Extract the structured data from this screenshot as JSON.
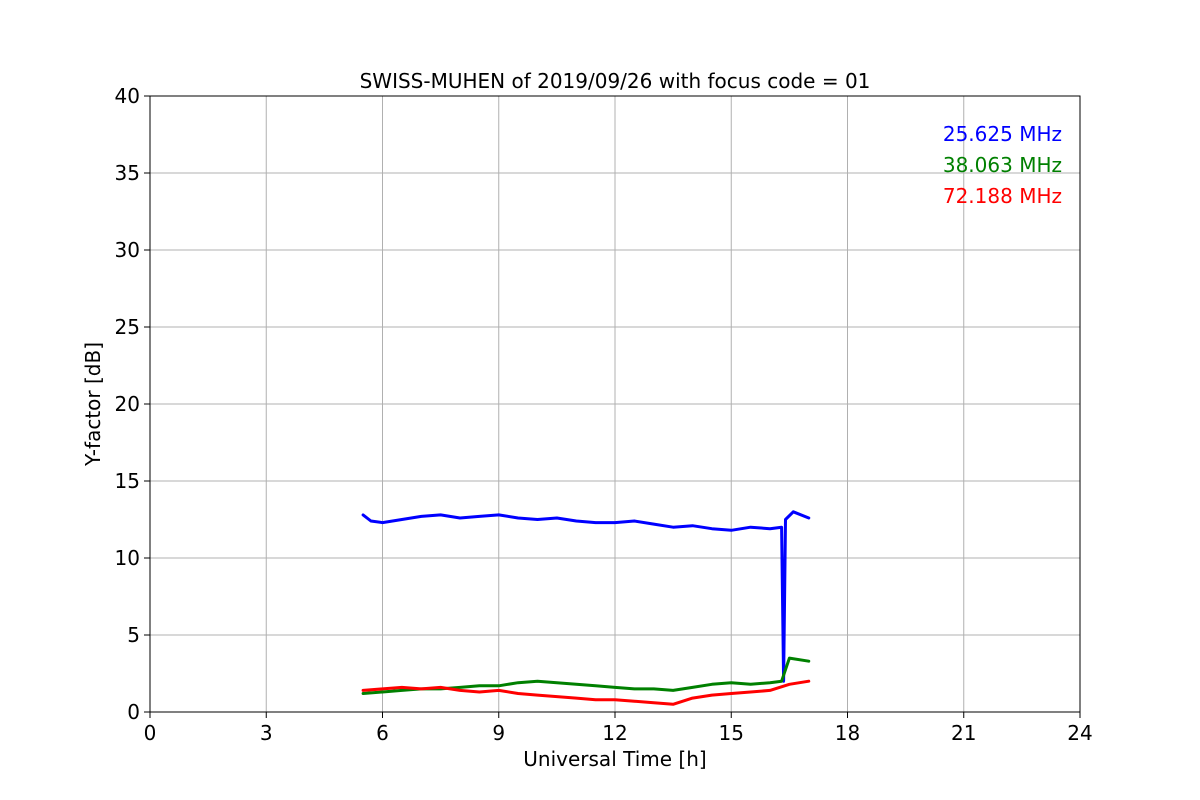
{
  "chart_data": {
    "type": "line",
    "title": "SWISS-MUHEN of 2019/09/26 with focus code = 01",
    "xlabel": "Universal Time [h]",
    "ylabel": "Y-factor [dB]",
    "xlim": [
      0,
      24
    ],
    "ylim": [
      0,
      40
    ],
    "xticks": [
      0,
      3,
      6,
      9,
      12,
      15,
      18,
      21,
      24
    ],
    "yticks": [
      0,
      5,
      10,
      15,
      20,
      25,
      30,
      35,
      40
    ],
    "grid": true,
    "legend_position": "top-right",
    "series": [
      {
        "name": "25.625 MHz",
        "color": "#0000ff",
        "x": [
          5.5,
          5.7,
          6.0,
          6.5,
          7.0,
          7.5,
          8.0,
          8.5,
          9.0,
          9.5,
          10.0,
          10.5,
          11.0,
          11.5,
          12.0,
          12.5,
          13.0,
          13.5,
          14.0,
          14.5,
          15.0,
          15.5,
          16.0,
          16.3,
          16.35,
          16.4,
          16.6,
          17.0
        ],
        "y": [
          12.8,
          12.4,
          12.3,
          12.5,
          12.7,
          12.8,
          12.6,
          12.7,
          12.8,
          12.6,
          12.5,
          12.6,
          12.4,
          12.3,
          12.3,
          12.4,
          12.2,
          12.0,
          12.1,
          11.9,
          11.8,
          12.0,
          11.9,
          12.0,
          2.0,
          12.5,
          13.0,
          12.6
        ]
      },
      {
        "name": "38.063 MHz",
        "color": "#008000",
        "x": [
          5.5,
          6.0,
          6.5,
          7.0,
          7.5,
          8.0,
          8.5,
          9.0,
          9.5,
          10.0,
          10.5,
          11.0,
          11.5,
          12.0,
          12.5,
          13.0,
          13.5,
          14.0,
          14.5,
          15.0,
          15.5,
          16.0,
          16.3,
          16.5,
          17.0
        ],
        "y": [
          1.2,
          1.3,
          1.4,
          1.5,
          1.5,
          1.6,
          1.7,
          1.7,
          1.9,
          2.0,
          1.9,
          1.8,
          1.7,
          1.6,
          1.5,
          1.5,
          1.4,
          1.6,
          1.8,
          1.9,
          1.8,
          1.9,
          2.0,
          3.5,
          3.3
        ]
      },
      {
        "name": "72.188 MHz",
        "color": "#ff0000",
        "x": [
          5.5,
          6.0,
          6.5,
          7.0,
          7.5,
          8.0,
          8.5,
          9.0,
          9.5,
          10.0,
          10.5,
          11.0,
          11.5,
          12.0,
          12.5,
          13.0,
          13.5,
          14.0,
          14.5,
          15.0,
          15.5,
          16.0,
          16.5,
          17.0
        ],
        "y": [
          1.4,
          1.5,
          1.6,
          1.5,
          1.6,
          1.4,
          1.3,
          1.4,
          1.2,
          1.1,
          1.0,
          0.9,
          0.8,
          0.8,
          0.7,
          0.6,
          0.5,
          0.9,
          1.1,
          1.2,
          1.3,
          1.4,
          1.8,
          2.0
        ]
      }
    ]
  }
}
